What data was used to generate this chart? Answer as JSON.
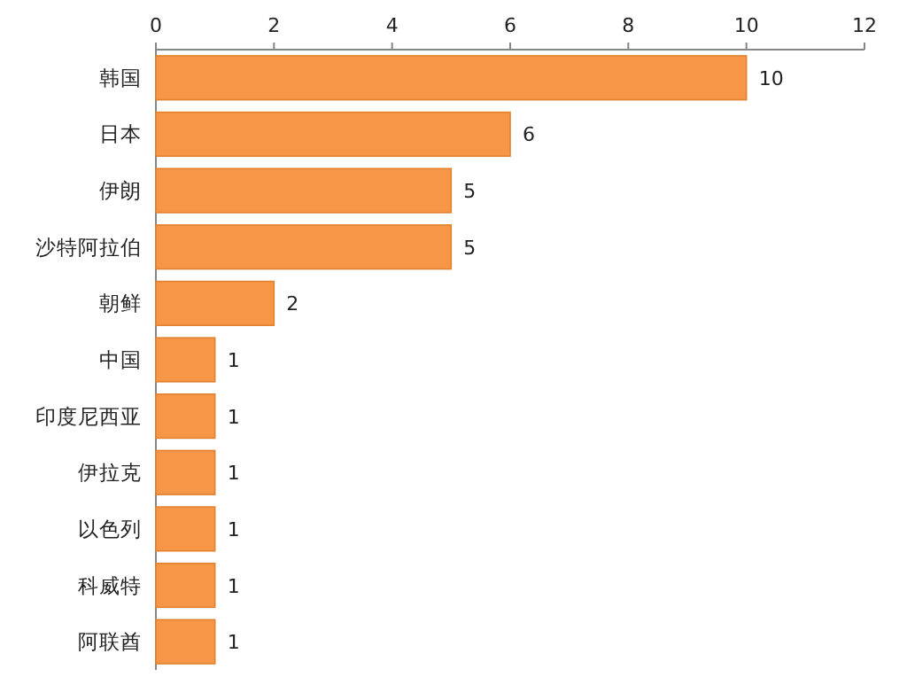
{
  "chart_data": {
    "type": "bar",
    "orientation": "horizontal",
    "categories": [
      "韩国",
      "日本",
      "伊朗",
      "沙特阿拉伯",
      "朝鲜",
      "中国",
      "印度尼西亚",
      "伊拉克",
      "以色列",
      "科威特",
      "阿联酋"
    ],
    "values": [
      10,
      6,
      5,
      5,
      2,
      1,
      1,
      1,
      1,
      1,
      1
    ],
    "color": "#f79646",
    "xlim": [
      0,
      12
    ],
    "xticks": [
      0,
      2,
      4,
      6,
      8,
      10,
      12
    ],
    "data_labels": true
  }
}
